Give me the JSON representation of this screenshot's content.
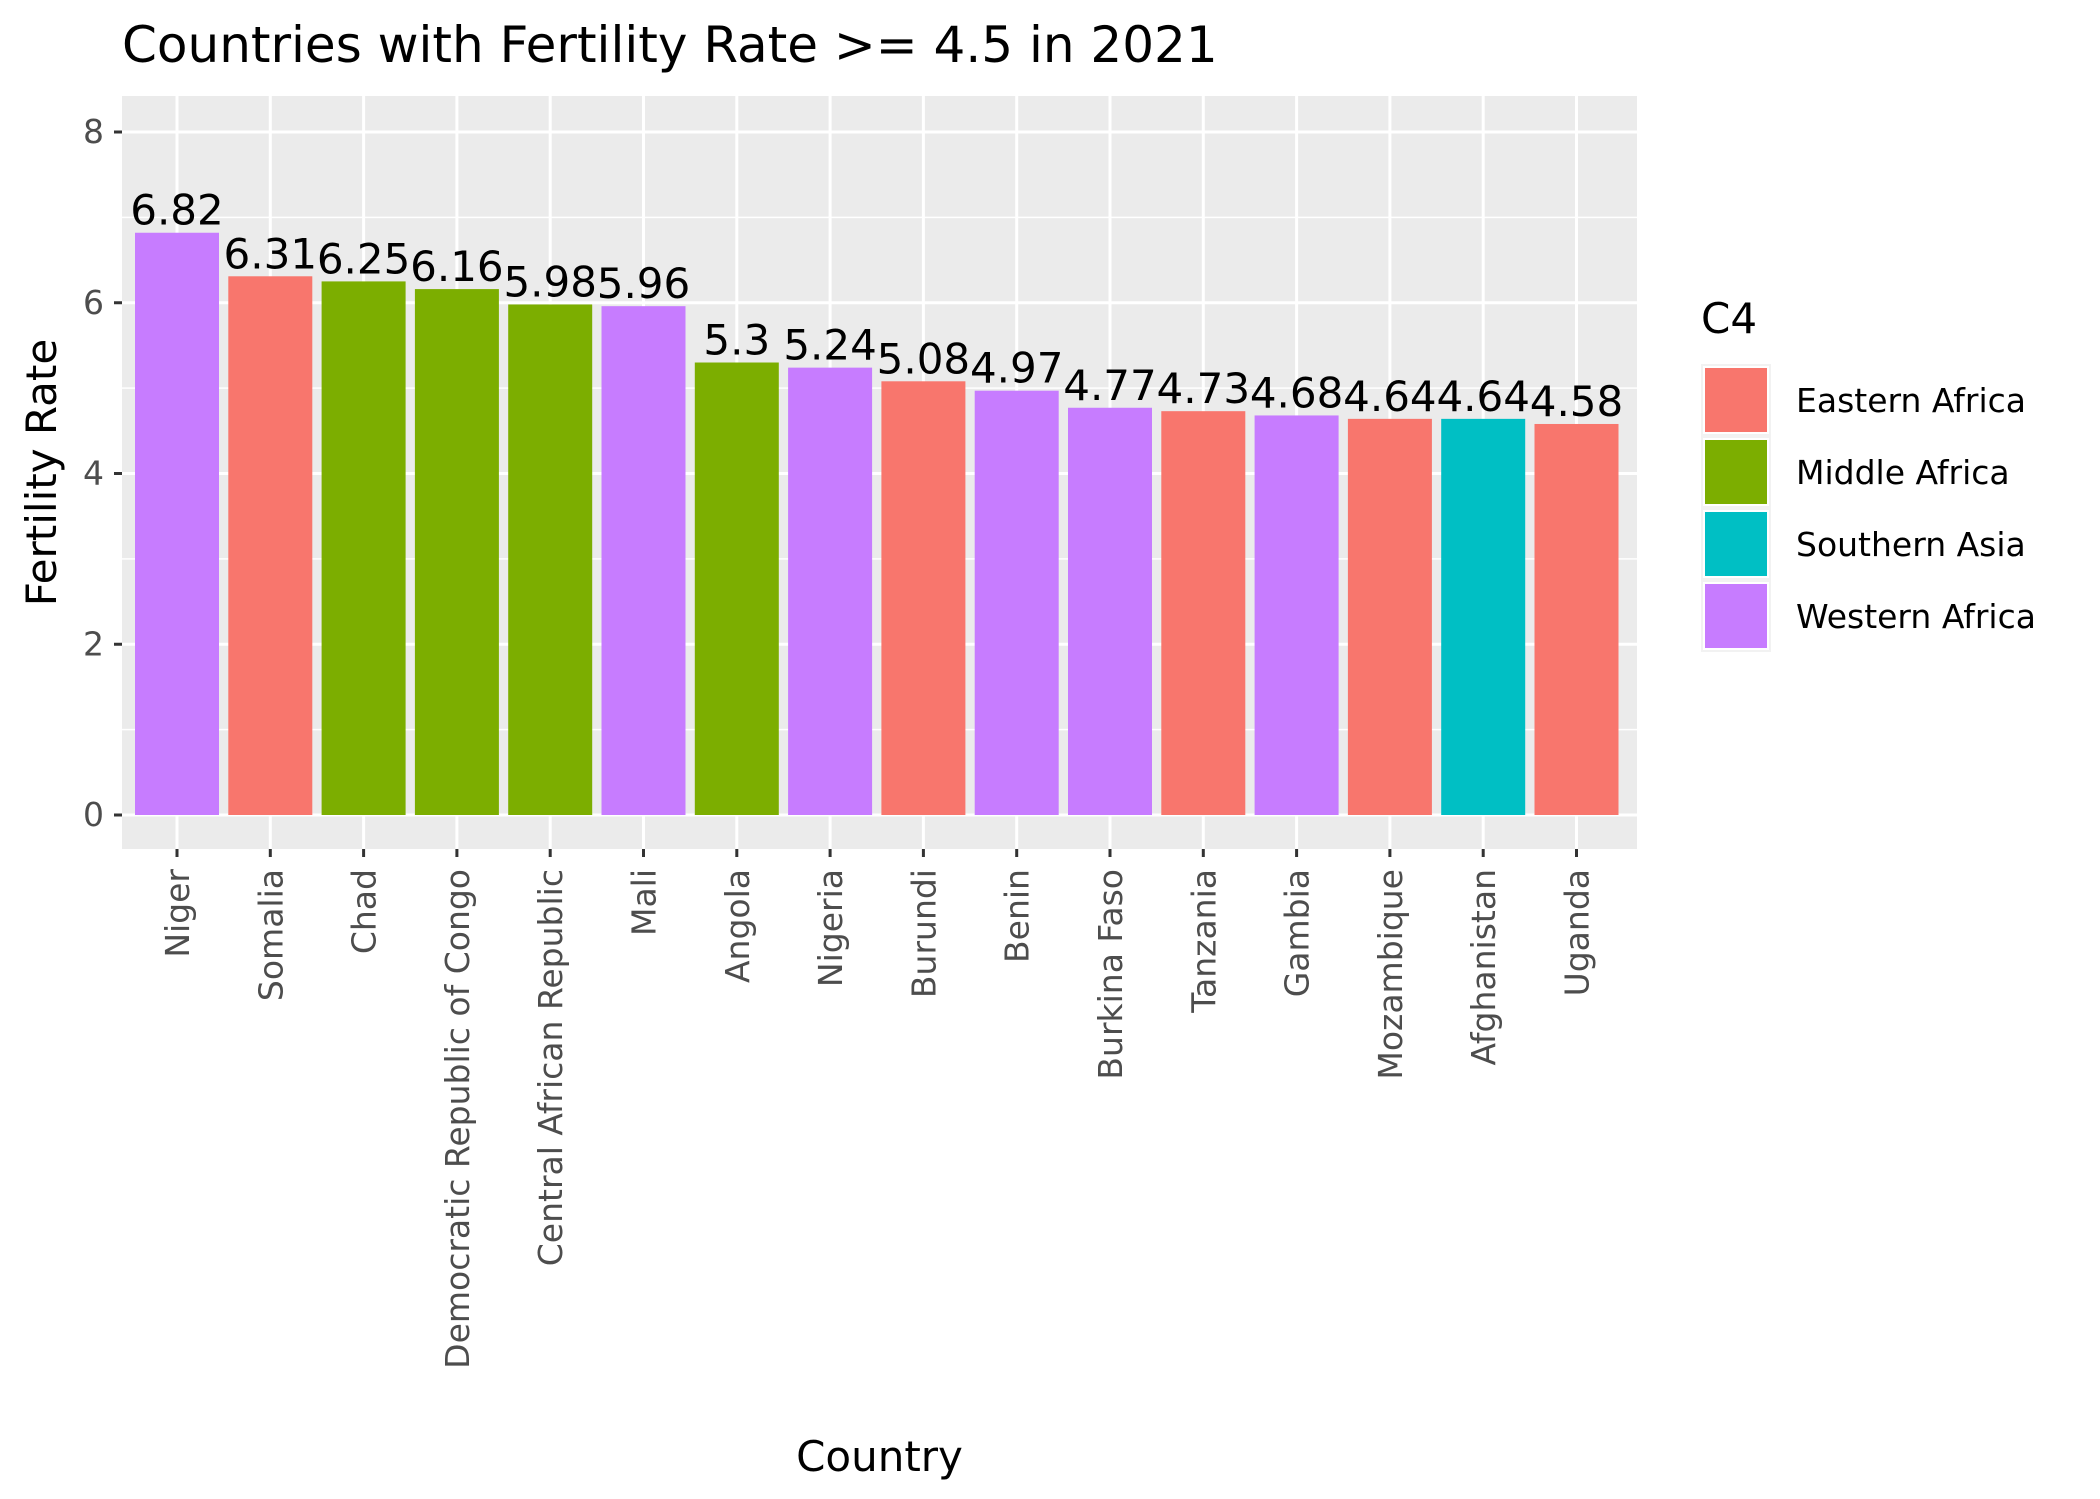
{
  "chart_data": {
    "type": "bar",
    "title": "Countries with Fertility Rate >= 4.5 in 2021",
    "xlabel": "Country",
    "ylabel": "Fertility Rate",
    "ylim": [
      0,
      8
    ],
    "yticks": [
      0,
      2,
      4,
      6,
      8
    ],
    "grid": true,
    "legend_position": "right",
    "legend_title": "C4",
    "categories": [
      "Niger",
      "Somalia",
      "Chad",
      "Democratic Republic of Congo",
      "Central African Republic",
      "Mali",
      "Angola",
      "Nigeria",
      "Burundi",
      "Benin",
      "Burkina Faso",
      "Tanzania",
      "Gambia",
      "Mozambique",
      "Afghanistan",
      "Uganda"
    ],
    "values": [
      6.82,
      6.31,
      6.25,
      6.16,
      5.98,
      5.96,
      5.3,
      5.24,
      5.08,
      4.97,
      4.77,
      4.73,
      4.68,
      4.64,
      4.64,
      4.58
    ],
    "value_labels": [
      "6.82",
      "6.31",
      "6.25",
      "6.16",
      "5.98",
      "5.96",
      "5.3",
      "5.24",
      "5.08",
      "4.97",
      "4.77",
      "4.73",
      "4.68",
      "4.64",
      "4.64",
      "4.58"
    ],
    "groups": [
      "Western Africa",
      "Eastern Africa",
      "Middle Africa",
      "Middle Africa",
      "Middle Africa",
      "Western Africa",
      "Middle Africa",
      "Western Africa",
      "Eastern Africa",
      "Western Africa",
      "Western Africa",
      "Eastern Africa",
      "Western Africa",
      "Eastern Africa",
      "Southern Asia",
      "Eastern Africa"
    ],
    "legend": [
      {
        "label": "Eastern Africa",
        "color": "#F8766D"
      },
      {
        "label": "Middle Africa",
        "color": "#7CAE00"
      },
      {
        "label": "Southern Asia",
        "color": "#00BFC4"
      },
      {
        "label": "Western Africa",
        "color": "#C77CFF"
      }
    ],
    "colors": {
      "panel_background": "#EBEBEB",
      "grid": "#FFFFFF"
    }
  }
}
